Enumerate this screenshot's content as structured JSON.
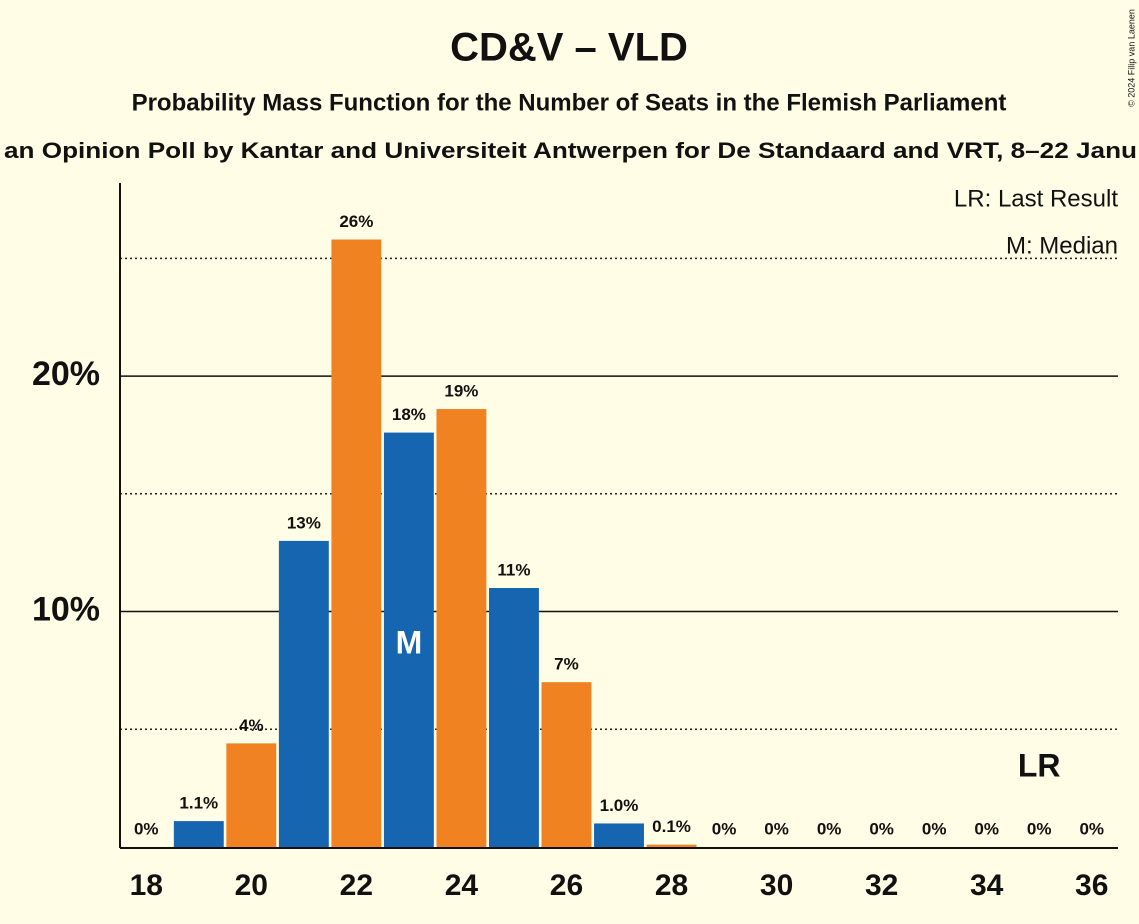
{
  "chart_data": {
    "type": "bar",
    "title": "CD&V – VLD",
    "subtitle": "Probability Mass Function for the Number of Seats in the Flemish Parliament",
    "subtitle2": "an Opinion Poll by Kantar and Universiteit Antwerpen for De Standaard and VRT, 8–22 Janu",
    "copyright": "© 2024 Filip van Laenen",
    "x": [
      18,
      19,
      20,
      21,
      22,
      23,
      24,
      25,
      26,
      27,
      28,
      29,
      30,
      31,
      32,
      33,
      34,
      35,
      36
    ],
    "values": [
      0,
      1.1,
      4.4,
      13.0,
      25.8,
      17.6,
      18.6,
      11.0,
      7.0,
      1.0,
      0.1,
      0,
      0,
      0,
      0,
      0,
      0,
      0,
      0
    ],
    "value_labels": [
      "0%",
      "1.1%",
      "4%",
      "13%",
      "26%",
      "18%",
      "19%",
      "11%",
      "7%",
      "1.0%",
      "0.1%",
      "0%",
      "0%",
      "0%",
      "0%",
      "0%",
      "0%",
      "0%",
      "0%"
    ],
    "colors": [
      "#1565b0",
      "#1565b0",
      "#f08222",
      "#1565b0",
      "#f08222",
      "#1565b0",
      "#f08222",
      "#1565b0",
      "#f08222",
      "#1565b0",
      "#f08222",
      "#1565b0",
      "#f08222",
      "#1565b0",
      "#f08222",
      "#1565b0",
      "#f08222",
      "#1565b0",
      "#f08222"
    ],
    "xlim": [
      17.5,
      36.5
    ],
    "xticks": [
      18,
      20,
      22,
      24,
      26,
      28,
      30,
      32,
      34,
      36
    ],
    "ylim": [
      0,
      28.2
    ],
    "yticks": [
      {
        "value": 10,
        "label": "10%"
      },
      {
        "value": 20,
        "label": "20%"
      }
    ],
    "minor_gridlines": [
      5,
      15,
      25
    ],
    "grid": true,
    "median": {
      "x": 23,
      "label": "M"
    },
    "last_result": {
      "x": 35,
      "label": "LR"
    },
    "legend": [
      "LR: Last Result",
      "M: Median"
    ]
  }
}
